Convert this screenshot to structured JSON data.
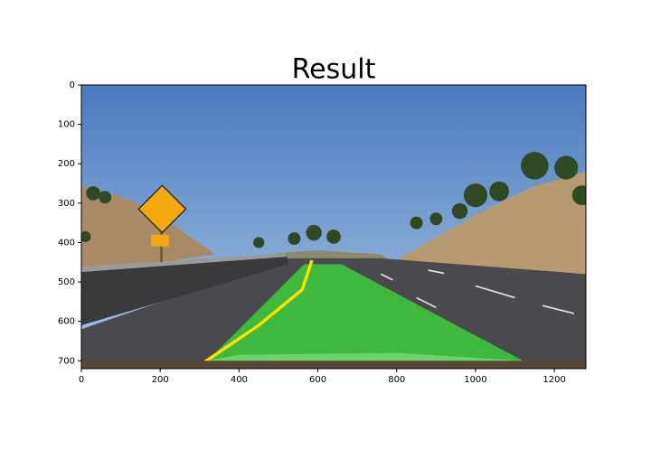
{
  "chart_data": {
    "type": "image",
    "title": "Result",
    "xlim": [
      0,
      1280
    ],
    "ylim": [
      720,
      0
    ],
    "xticks": [
      0,
      200,
      400,
      600,
      800,
      1000,
      1200
    ],
    "yticks": [
      0,
      100,
      200,
      300,
      400,
      500,
      600,
      700
    ]
  }
}
